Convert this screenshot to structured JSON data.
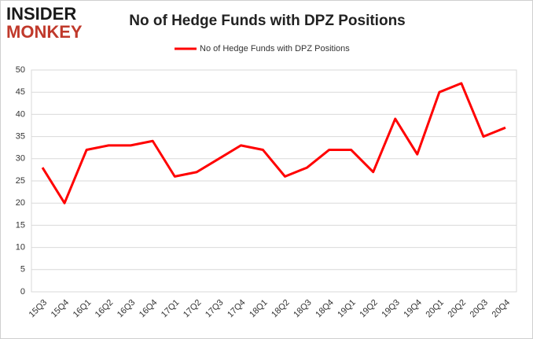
{
  "brand": {
    "line1": "INSIDER",
    "line2": "MONKEY"
  },
  "chart_data": {
    "type": "line",
    "title": "No of Hedge Funds with DPZ Positions",
    "categories": [
      "15Q3",
      "15Q4",
      "16Q1",
      "16Q2",
      "16Q3",
      "16Q4",
      "17Q1",
      "17Q2",
      "17Q3",
      "17Q4",
      "18Q1",
      "18Q2",
      "18Q3",
      "18Q4",
      "19Q1",
      "19Q2",
      "19Q3",
      "19Q4",
      "20Q1",
      "20Q2",
      "20Q3",
      "20Q4"
    ],
    "series": [
      {
        "name": "No of Hedge Funds with DPZ Positions",
        "color": "#ff0000",
        "values": [
          28,
          20,
          32,
          33,
          33,
          34,
          26,
          27,
          30,
          33,
          32,
          26,
          28,
          32,
          32,
          27,
          39,
          31,
          45,
          47,
          35,
          37
        ]
      }
    ],
    "ylim": [
      0,
      50
    ],
    "yticks": [
      0,
      5,
      10,
      15,
      20,
      25,
      30,
      35,
      40,
      45,
      50
    ],
    "grid": true,
    "legend": "top"
  }
}
